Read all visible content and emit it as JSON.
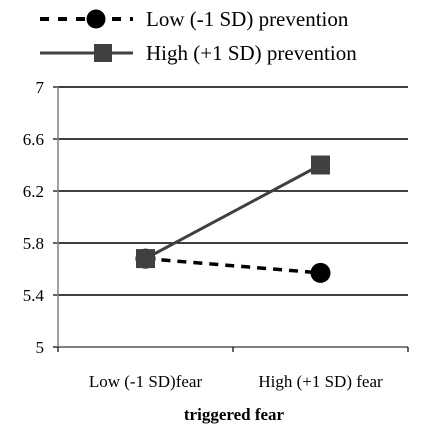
{
  "chart_data": {
    "type": "line",
    "xlabel": "triggered fear",
    "ylabel": "",
    "categories": [
      "Low (-1 SD)fear",
      "High (+1 SD) fear"
    ],
    "ylim": [
      5,
      7
    ],
    "yticks": [
      "5",
      "5.4",
      "5.8",
      "6.2",
      "6.6",
      "7"
    ],
    "grid": true,
    "legend_position": "top",
    "series": [
      {
        "name": "Low (-1 SD) prevention",
        "values": [
          5.68,
          5.57
        ],
        "line_style": "dashed",
        "marker": "circle",
        "color": "#000000"
      },
      {
        "name": "High (+1 SD) prevention",
        "values": [
          5.68,
          6.4
        ],
        "line_style": "solid",
        "marker": "square",
        "color": "#404040"
      }
    ]
  }
}
